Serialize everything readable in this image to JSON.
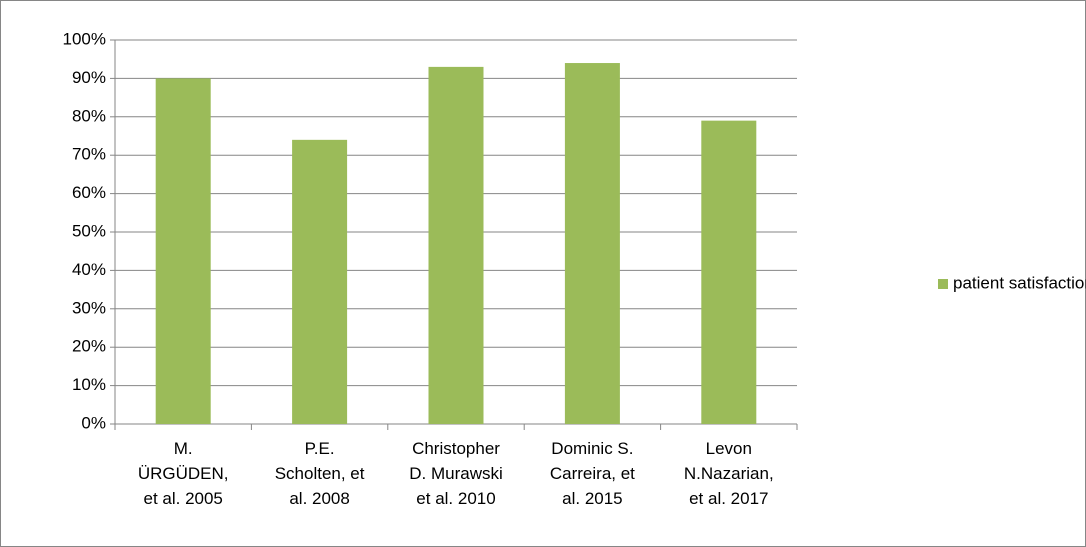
{
  "chart_data": {
    "type": "bar",
    "categories": [
      "M.\nÜRGÜDEN,\net al. 2005",
      "P.E.\nScholten, et\nal. 2008",
      "Christopher\nD. Murawski\net al.  2010",
      "Dominic S.\nCarreira, et\nal. 2015",
      "Levon\nN.Nazarian,\net al. 2017"
    ],
    "series": [
      {
        "name": "patient satisfaction",
        "color": "#9bbb59",
        "values": [
          90,
          74,
          93,
          94,
          79
        ]
      }
    ],
    "ylim": [
      0,
      100
    ],
    "yticks": [
      {
        "value": 0,
        "label": "0%"
      },
      {
        "value": 10,
        "label": "10%"
      },
      {
        "value": 20,
        "label": "20%"
      },
      {
        "value": 30,
        "label": "30%"
      },
      {
        "value": 40,
        "label": "40%"
      },
      {
        "value": 50,
        "label": "50%"
      },
      {
        "value": 60,
        "label": "60%"
      },
      {
        "value": 70,
        "label": "70%"
      },
      {
        "value": 80,
        "label": "80%"
      },
      {
        "value": 90,
        "label": "90%"
      },
      {
        "value": 100,
        "label": "100%"
      }
    ],
    "grid": true,
    "legend": "right"
  }
}
